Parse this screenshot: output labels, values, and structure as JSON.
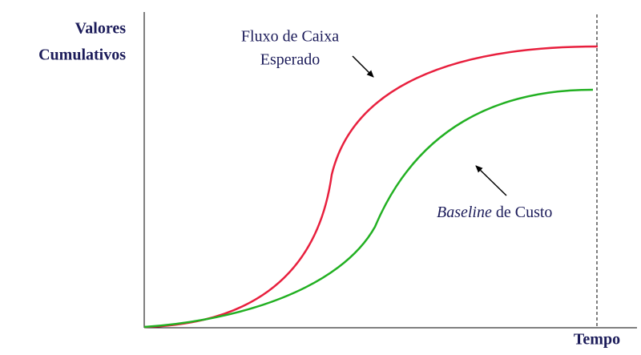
{
  "y_axis": {
    "label_lines": [
      "Valores",
      "Cumulativos"
    ]
  },
  "x_axis": {
    "label": "Tempo"
  },
  "annotations": [
    {
      "lines": [
        "Fluxo de Caixa",
        "Esperado"
      ]
    },
    {
      "italic": "Baseline",
      "text": "de Custo"
    }
  ]
}
